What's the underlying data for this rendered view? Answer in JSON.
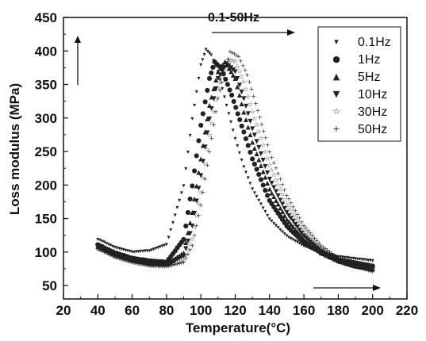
{
  "chart_data": {
    "type": "scatter",
    "title": "",
    "xlabel": "Temperature(°C)",
    "ylabel": "Loss modulus (MPa)",
    "xlim": [
      20,
      220
    ],
    "ylim": [
      30,
      450
    ],
    "x_ticks": [
      20,
      40,
      60,
      80,
      100,
      120,
      140,
      160,
      180,
      200,
      220
    ],
    "y_ticks": [
      50,
      100,
      150,
      200,
      250,
      300,
      350,
      400,
      450
    ],
    "annotation": "0.1-50Hz",
    "legend_position": "top-right",
    "grid": false,
    "series": [
      {
        "name": "0.1Hz",
        "marker": "▾",
        "x": [
          40,
          50,
          60,
          70,
          80,
          90,
          95,
          100,
          103,
          106,
          110,
          115,
          120,
          125,
          130,
          140,
          150,
          160,
          170,
          180,
          190,
          200
        ],
        "y": [
          120,
          108,
          101,
          103,
          112,
          200,
          300,
          380,
          403,
          395,
          370,
          320,
          270,
          228,
          195,
          150,
          125,
          110,
          100,
          94,
          91,
          88
        ]
      },
      {
        "name": "1Hz",
        "marker": "●",
        "x": [
          40,
          50,
          60,
          70,
          80,
          90,
          95,
          100,
          105,
          108,
          112,
          118,
          125,
          130,
          140,
          150,
          160,
          170,
          180,
          190,
          200
        ],
        "y": [
          112,
          100,
          92,
          88,
          86,
          120,
          200,
          290,
          360,
          385,
          375,
          335,
          280,
          240,
          178,
          140,
          115,
          100,
          90,
          85,
          80
        ]
      },
      {
        "name": "5Hz",
        "marker": "▲",
        "x": [
          40,
          50,
          60,
          70,
          80,
          90,
          95,
          100,
          105,
          110,
          114,
          120,
          125,
          130,
          140,
          150,
          160,
          170,
          180,
          190,
          200
        ],
        "y": [
          110,
          98,
          90,
          85,
          83,
          100,
          160,
          240,
          320,
          370,
          385,
          360,
          310,
          265,
          195,
          150,
          120,
          100,
          88,
          80,
          76
        ]
      },
      {
        "name": "10Hz",
        "marker": "▼",
        "x": [
          40,
          50,
          60,
          70,
          80,
          90,
          95,
          100,
          105,
          110,
          115,
          120,
          125,
          130,
          140,
          150,
          160,
          170,
          180,
          190,
          200
        ],
        "y": [
          108,
          96,
          88,
          83,
          82,
          95,
          140,
          215,
          300,
          360,
          382,
          370,
          330,
          285,
          210,
          160,
          125,
          102,
          88,
          79,
          74
        ]
      },
      {
        "name": "30Hz",
        "marker": "☆",
        "x": [
          40,
          50,
          60,
          70,
          80,
          90,
          95,
          100,
          105,
          110,
          116,
          120,
          125,
          130,
          140,
          150,
          160,
          170,
          180,
          190,
          200
        ],
        "y": [
          106,
          94,
          86,
          81,
          80,
          88,
          120,
          190,
          275,
          345,
          388,
          385,
          355,
          310,
          230,
          172,
          133,
          107,
          90,
          80,
          73
        ]
      },
      {
        "name": "50Hz",
        "marker": "+",
        "x": [
          40,
          50,
          60,
          70,
          80,
          90,
          95,
          100,
          105,
          110,
          117,
          122,
          127,
          132,
          140,
          150,
          160,
          170,
          180,
          190,
          200
        ],
        "y": [
          105,
          93,
          85,
          80,
          79,
          85,
          110,
          170,
          250,
          330,
          400,
          392,
          365,
          322,
          250,
          185,
          140,
          110,
          92,
          80,
          71
        ]
      }
    ]
  }
}
